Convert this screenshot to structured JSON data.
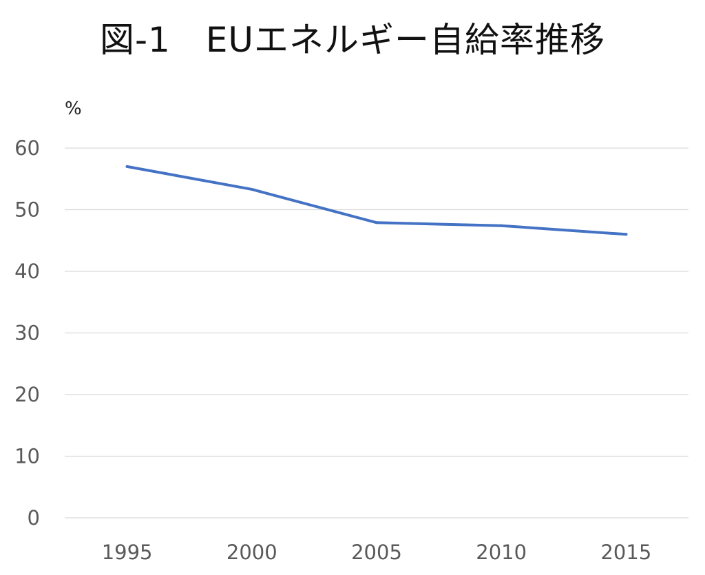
{
  "chart_data": {
    "type": "line",
    "title": "図-1　EUエネルギー自給率推移",
    "ylabel": "%",
    "xlabel": "",
    "categories": [
      "1995",
      "2000",
      "2005",
      "2010",
      "2015"
    ],
    "series": [
      {
        "values": [
          57.0,
          53.3,
          47.9,
          47.4,
          46.0
        ],
        "color": "#4472c4"
      }
    ],
    "ylim": [
      0,
      60
    ],
    "yticks": [
      "0",
      "10",
      "20",
      "30",
      "40",
      "50",
      "60"
    ],
    "grid": true,
    "legend": "none"
  },
  "colors": {
    "line": "#4472c4",
    "grid": "#d9d9d9",
    "tick_text": "#595959"
  }
}
